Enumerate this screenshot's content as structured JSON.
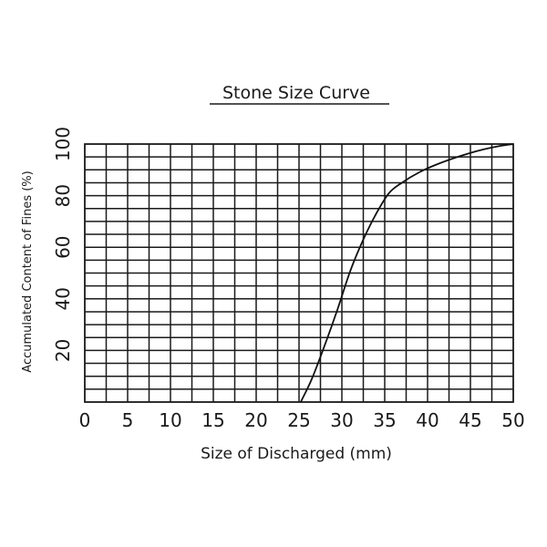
{
  "chart_data": {
    "type": "line",
    "title": "Stone Size Curve",
    "xlabel": "Size of Discharged (mm)",
    "ylabel": "Accumulated Content of Fines (%)",
    "xlim": [
      0,
      50
    ],
    "ylim": [
      0,
      100
    ],
    "x_ticks": [
      "0",
      "5",
      "10",
      "15",
      "20",
      "25",
      "30",
      "35",
      "40",
      "45",
      "50"
    ],
    "y_ticks": [
      "20",
      "40",
      "60",
      "80",
      "100"
    ],
    "grid": true,
    "series": [
      {
        "x": [
          25.2,
          26.5,
          28,
          29.5,
          31,
          32.5,
          34,
          35.5,
          37,
          39,
          41,
          43.5,
          46,
          48.5,
          50
        ],
        "values": [
          0,
          9,
          22,
          36,
          51,
          63,
          73,
          81,
          85,
          89,
          92,
          95,
          97.5,
          99.3,
          100
        ]
      }
    ]
  }
}
